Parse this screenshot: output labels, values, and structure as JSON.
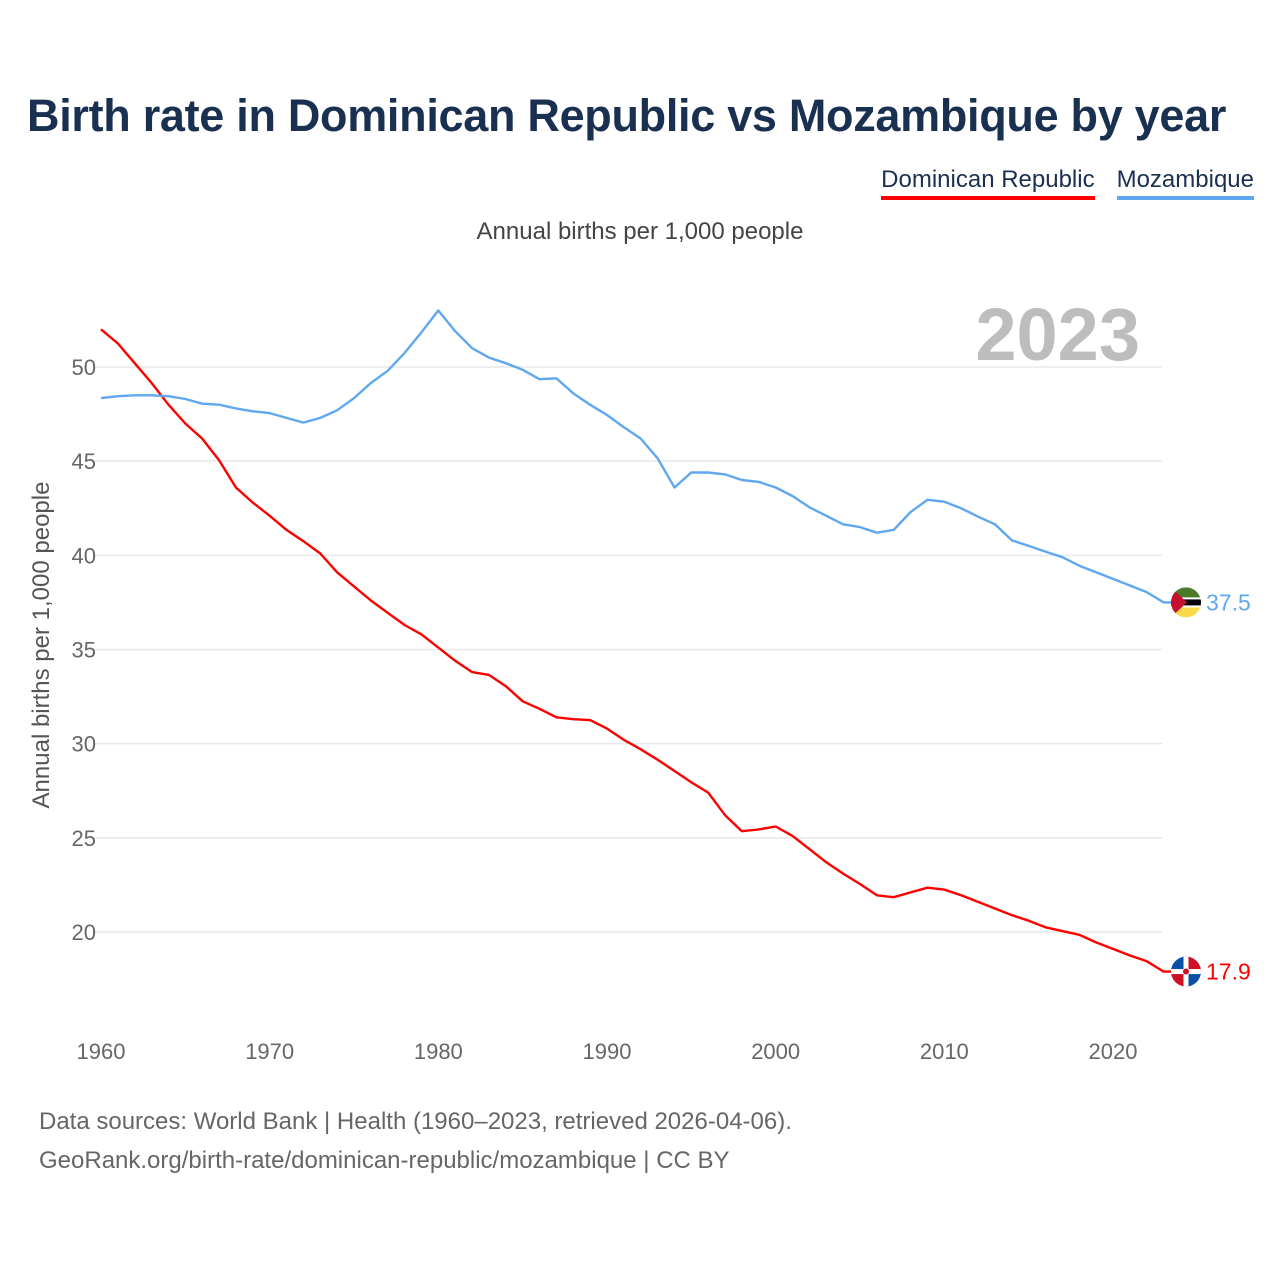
{
  "title": "Birth rate in Dominican Republic vs Mozambique by year",
  "legend": [
    {
      "label": "Dominican Republic",
      "color": "#ff0000"
    },
    {
      "label": "Mozambique",
      "color": "#5fa8ef"
    }
  ],
  "subtitle": "Annual births per 1,000 people",
  "footer": {
    "line1": "Data sources: World Bank | Health (1960–2023, retrieved 2026-04-06).",
    "line2": "GeoRank.org/birth-rate/dominican-republic/mozambique | CC BY"
  },
  "chart_data": {
    "type": "line",
    "title": "Birth rate in Dominican Republic vs Mozambique by year",
    "ylabel": "Annual births per 1,000 people",
    "xlabel": "",
    "year_label": "2023",
    "xlim": [
      1960,
      2023
    ],
    "ylim": [
      15.5,
      54
    ],
    "xticks": [
      1960,
      1970,
      1980,
      1990,
      2000,
      2010,
      2020
    ],
    "yticks": [
      20,
      25,
      30,
      35,
      40,
      45,
      50
    ],
    "grid": true,
    "legend_position": "top-right",
    "x_start": 1960,
    "series": [
      {
        "name": "Dominican Republic",
        "color": "#ff0000",
        "end_label": "17.9",
        "flag": "dominican-republic-flag",
        "values": [
          52.0,
          51.25,
          50.2,
          49.15,
          48.0,
          47.0,
          46.2,
          45.05,
          43.6,
          42.8,
          42.1,
          41.35,
          40.75,
          40.1,
          39.1,
          38.35,
          37.6,
          36.95,
          36.3,
          35.8,
          35.1,
          34.4,
          33.8,
          33.65,
          33.05,
          32.25,
          31.85,
          31.4,
          31.3,
          31.25,
          30.8,
          30.2,
          29.7,
          29.15,
          28.55,
          27.95,
          27.4,
          26.2,
          25.35,
          25.45,
          25.6,
          25.1,
          24.4,
          23.7,
          23.1,
          22.55,
          21.95,
          21.85,
          22.1,
          22.35,
          22.25,
          21.95,
          21.6,
          21.25,
          20.9,
          20.6,
          20.25,
          20.05,
          19.85,
          19.45,
          19.1,
          18.75,
          18.45,
          17.9
        ]
      },
      {
        "name": "Mozambique",
        "color": "#5fa8ef",
        "end_label": "37.5",
        "flag": "mozambique-flag",
        "values": [
          48.35,
          48.45,
          48.5,
          48.5,
          48.45,
          48.3,
          48.05,
          48.0,
          47.8,
          47.65,
          47.55,
          47.3,
          47.05,
          47.3,
          47.7,
          48.35,
          49.15,
          49.8,
          50.75,
          51.85,
          53.0,
          51.9,
          51.0,
          50.5,
          50.2,
          49.85,
          49.35,
          49.4,
          48.6,
          48.0,
          47.45,
          46.8,
          46.2,
          45.15,
          43.6,
          44.4,
          44.4,
          44.3,
          44.0,
          43.9,
          43.6,
          43.15,
          42.55,
          42.1,
          41.65,
          41.5,
          41.2,
          41.35,
          42.3,
          42.95,
          42.85,
          42.5,
          42.05,
          41.65,
          40.8,
          40.5,
          40.2,
          39.9,
          39.45,
          39.1,
          38.75,
          38.4,
          38.05,
          37.5
        ]
      }
    ]
  }
}
